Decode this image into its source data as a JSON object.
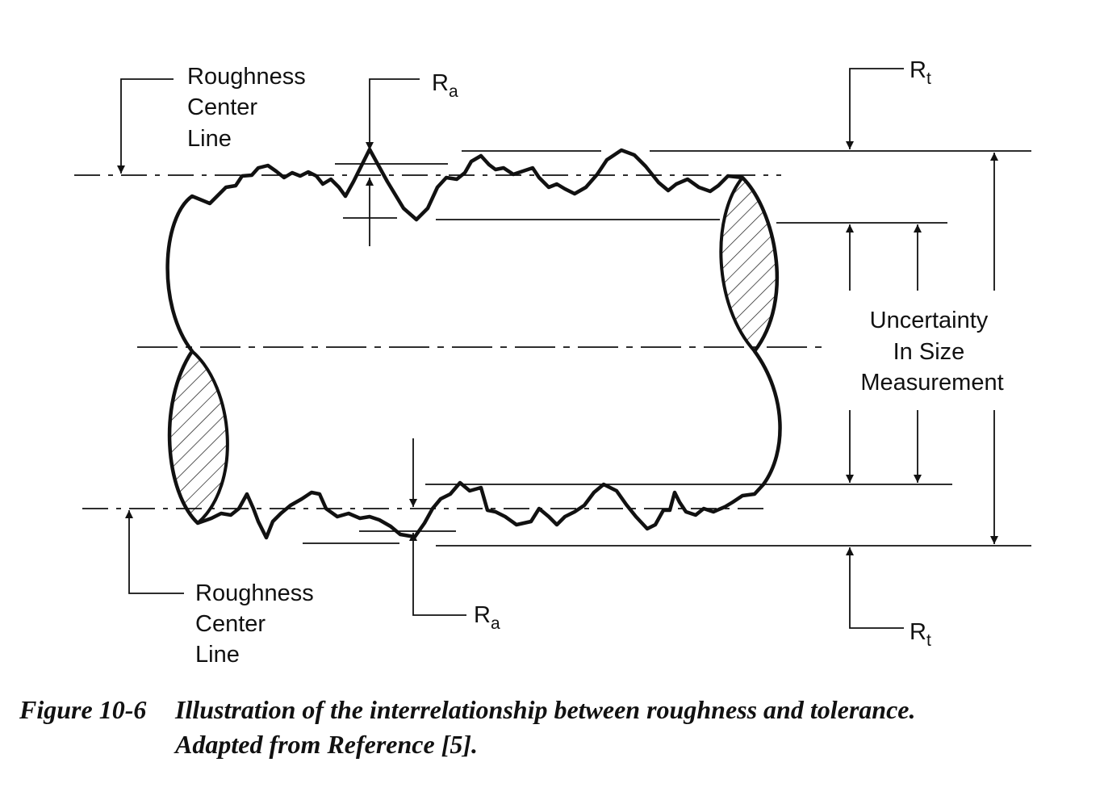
{
  "labels": {
    "roughness_center_line_top": [
      "Roughness",
      "Center",
      "Line"
    ],
    "roughness_center_line_bottom": [
      "Roughness",
      "Center",
      "Line"
    ],
    "ra_top": {
      "main": "R",
      "sub": "a"
    },
    "ra_bottom": {
      "main": "R",
      "sub": "a"
    },
    "rt_top": {
      "main": "R",
      "sub": "t"
    },
    "rt_bottom": {
      "main": "R",
      "sub": "t"
    },
    "uncertainty": [
      "Uncertainty",
      "In Size",
      "Measurement"
    ]
  },
  "caption": {
    "number": "Figure 10-6",
    "line1": "Illustration of the interrelationship between roughness and tolerance.",
    "line2": "Adapted from Reference [5]."
  },
  "colors": {
    "ink": "#111111",
    "background": "#ffffff"
  }
}
